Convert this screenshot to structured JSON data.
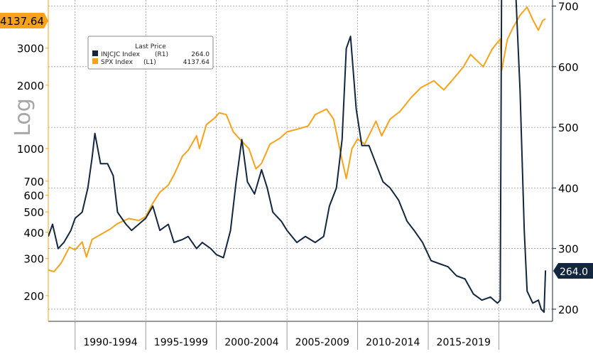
{
  "chart_data": {
    "type": "line",
    "left_axis_label": "Log",
    "left_axis_scale": "log",
    "left_ticks": [
      200,
      300,
      400,
      500,
      600,
      700,
      1000,
      2000,
      3000
    ],
    "left_range": [
      151,
      5080
    ],
    "right_ticks": [
      200,
      300,
      400,
      500,
      600,
      700
    ],
    "right_range": [
      180,
      710
    ],
    "x_range": [
      1988.1,
      2023.8
    ],
    "x_period_labels": [
      "1990-1994",
      "1995-1999",
      "2000-2004",
      "2005-2009",
      "2010-2014",
      "2015-2019"
    ],
    "x_period_starts": [
      1990,
      1995,
      2000,
      2005,
      2010,
      2015,
      2020
    ],
    "grid": true,
    "legend": {
      "title": "Last Price",
      "placement": "top-left",
      "entries": [
        {
          "name": "INJCJC Index",
          "axis": "(R1)",
          "last": "264.0"
        },
        {
          "name": "SPX Index",
          "axis": "(L1)",
          "last": "4137.64"
        }
      ]
    },
    "last_value_labels": {
      "left": "4137.64",
      "right": "264.0"
    },
    "colors": {
      "INJCJC": "#12263f",
      "SPX": "#f7a21b"
    },
    "series": [
      {
        "name": "SPX Index",
        "axis": "left",
        "x": [
          1988.1,
          1988.5,
          1989.0,
          1989.6,
          1990.0,
          1990.5,
          1990.8,
          1991.2,
          1991.8,
          1992.5,
          1993.0,
          1993.8,
          1994.5,
          1995.0,
          1995.5,
          1996.0,
          1996.6,
          1997.0,
          1997.6,
          1998.0,
          1998.6,
          1998.8,
          1999.3,
          1999.9,
          2000.2,
          2000.7,
          2001.2,
          2001.7,
          2002.3,
          2002.8,
          2003.2,
          2003.8,
          2004.5,
          2005.0,
          2005.8,
          2006.5,
          2007.0,
          2007.8,
          2008.3,
          2008.9,
          2009.2,
          2009.6,
          2010.0,
          2010.5,
          2011.3,
          2011.7,
          2012.3,
          2013.0,
          2013.8,
          2014.5,
          2015.4,
          2016.1,
          2016.8,
          2017.5,
          2018.0,
          2018.9,
          2019.5,
          2020.1,
          2020.2,
          2020.6,
          2021.0,
          2021.5,
          2022.0,
          2022.4,
          2022.8,
          2023.1,
          2023.3
        ],
        "y": [
          265,
          260,
          285,
          340,
          330,
          360,
          305,
          370,
          390,
          415,
          440,
          465,
          455,
          475,
          550,
          620,
          670,
          750,
          920,
          980,
          1150,
          1000,
          1300,
          1400,
          1480,
          1450,
          1200,
          1100,
          1000,
          800,
          850,
          1050,
          1120,
          1200,
          1240,
          1280,
          1450,
          1540,
          1380,
          880,
          720,
          1000,
          1110,
          1050,
          1350,
          1150,
          1380,
          1500,
          1750,
          1950,
          2100,
          1900,
          2150,
          2450,
          2800,
          2450,
          2950,
          3320,
          2350,
          3300,
          3750,
          4300,
          4700,
          4100,
          3650,
          4050,
          4137.64
        ]
      },
      {
        "name": "INJCJC Index",
        "axis": "right",
        "x": [
          1988.1,
          1988.4,
          1988.8,
          1989.2,
          1989.7,
          1990.0,
          1990.5,
          1990.9,
          1991.2,
          1991.4,
          1991.8,
          1992.3,
          1992.7,
          1993.0,
          1993.6,
          1994.0,
          1994.5,
          1995.0,
          1995.5,
          1996.0,
          1996.6,
          1997.0,
          1997.6,
          1998.0,
          1998.6,
          1999.0,
          1999.6,
          2000.0,
          2000.5,
          2001.0,
          2001.4,
          2001.8,
          2002.2,
          2002.7,
          2003.2,
          2003.6,
          2004.0,
          2004.6,
          2005.0,
          2005.7,
          2006.3,
          2007.0,
          2007.6,
          2008.0,
          2008.5,
          2008.9,
          2009.2,
          2009.5,
          2009.9,
          2010.3,
          2010.8,
          2011.3,
          2011.8,
          2012.3,
          2012.9,
          2013.5,
          2014.0,
          2014.6,
          2015.2,
          2015.8,
          2016.4,
          2017.0,
          2017.6,
          2018.2,
          2018.8,
          2019.4,
          2019.9,
          2020.1,
          2020.2,
          2020.3,
          2020.6,
          2020.9,
          2021.2,
          2021.5,
          2021.8,
          2022.0,
          2022.4,
          2022.8,
          2023.0,
          2023.2,
          2023.3
        ],
        "y": [
          320,
          340,
          300,
          310,
          330,
          350,
          360,
          400,
          450,
          490,
          440,
          440,
          420,
          360,
          340,
          330,
          340,
          350,
          370,
          330,
          340,
          310,
          315,
          320,
          300,
          310,
          300,
          290,
          285,
          330,
          410,
          480,
          410,
          390,
          430,
          400,
          360,
          345,
          330,
          310,
          320,
          310,
          320,
          370,
          400,
          480,
          630,
          650,
          530,
          470,
          470,
          440,
          410,
          400,
          380,
          345,
          330,
          310,
          280,
          275,
          270,
          255,
          250,
          225,
          215,
          220,
          210,
          215,
          760,
          720,
          720,
          720,
          720,
          560,
          330,
          230,
          210,
          215,
          200,
          195,
          264.0
        ]
      }
    ]
  }
}
